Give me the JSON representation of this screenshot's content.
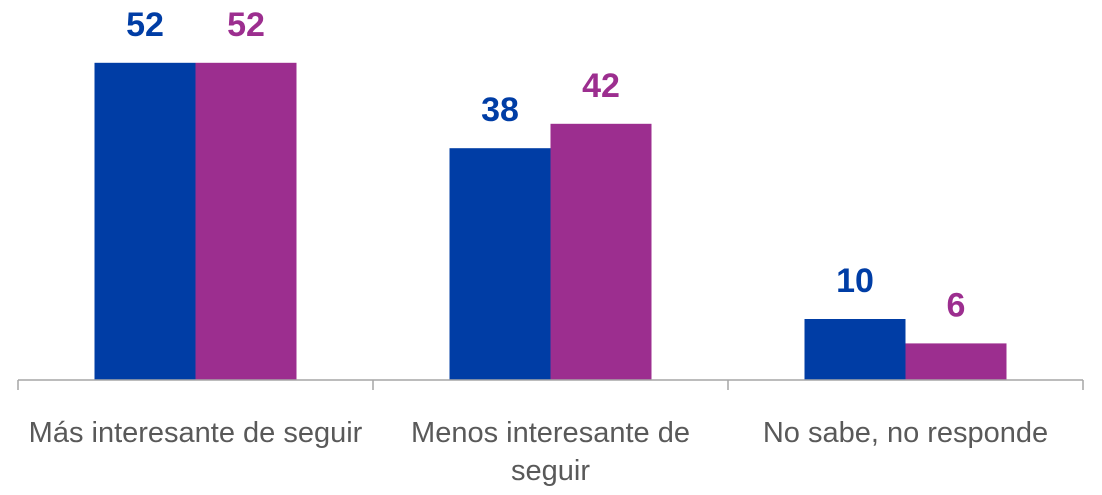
{
  "chart_data": {
    "type": "bar",
    "categories": [
      "Más interesante de seguir",
      "Menos interesante de seguir",
      "No sabe, no responde"
    ],
    "series": [
      {
        "color": "#003da5",
        "values": [
          52,
          38,
          10
        ]
      },
      {
        "color": "#9c2e8f",
        "values": [
          52,
          42,
          6
        ]
      }
    ],
    "ylim": [
      0,
      60
    ]
  }
}
